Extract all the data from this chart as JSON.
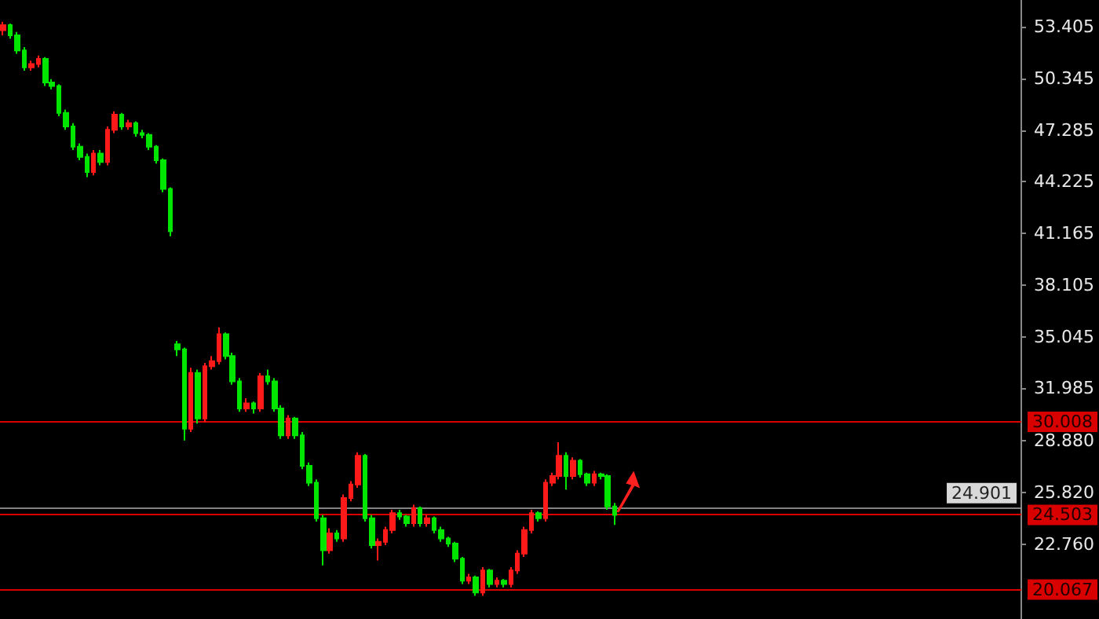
{
  "chart_data": {
    "type": "candlestick",
    "categories": [
      null,
      null,
      null,
      null,
      null,
      null,
      null,
      null,
      null,
      null,
      null,
      null,
      null,
      null,
      null,
      null,
      null,
      null,
      null,
      null,
      null,
      null,
      null,
      null,
      null,
      null,
      null,
      null,
      null,
      null,
      null,
      null,
      null,
      null,
      null,
      null,
      null,
      null,
      null,
      null,
      null,
      null,
      null,
      null,
      null,
      null,
      null,
      null,
      null,
      null,
      null,
      null,
      null,
      null,
      null,
      null,
      null,
      null,
      null,
      null,
      null,
      null,
      null,
      null,
      null,
      null,
      null,
      null,
      null,
      null,
      null,
      null,
      null,
      null,
      null,
      null,
      null,
      null,
      null,
      null,
      null,
      null,
      null,
      null,
      null,
      null,
      null,
      null,
      null,
      null,
      null,
      null,
      null,
      null,
      null,
      null,
      null,
      null,
      null,
      null,
      null,
      null,
      null,
      null,
      null,
      null,
      null,
      null,
      null,
      null,
      null,
      null,
      null,
      null,
      null,
      null,
      null,
      null,
      null,
      null,
      null,
      null,
      null,
      null,
      null,
      null,
      null,
      null,
      null,
      null,
      null,
      null,
      null,
      null,
      null,
      null,
      null,
      null,
      null,
      null,
      null,
      null,
      null,
      null,
      null,
      null,
      null
    ],
    "ohlc": [
      [
        53.2,
        53.7,
        52.9,
        53.5
      ],
      [
        53.5,
        53.6,
        52.7,
        52.9
      ],
      [
        52.9,
        53.1,
        51.8,
        52.0
      ],
      [
        52.0,
        52.2,
        50.8,
        51.0
      ],
      [
        51.0,
        51.4,
        50.8,
        51.2
      ],
      [
        51.2,
        51.7,
        51.0,
        51.5
      ],
      [
        51.5,
        51.6,
        49.9,
        50.1
      ],
      [
        50.1,
        50.3,
        49.7,
        49.9
      ],
      [
        49.9,
        50.0,
        48.1,
        48.3
      ],
      [
        48.3,
        48.5,
        47.3,
        47.5
      ],
      [
        47.5,
        47.7,
        46.1,
        46.3
      ],
      [
        46.3,
        46.5,
        45.5,
        45.7
      ],
      [
        45.7,
        45.9,
        44.5,
        44.8
      ],
      [
        44.8,
        46.1,
        44.6,
        45.9
      ],
      [
        45.9,
        46.1,
        45.2,
        45.4
      ],
      [
        45.4,
        47.5,
        45.2,
        47.3
      ],
      [
        47.3,
        48.4,
        47.1,
        48.2
      ],
      [
        48.2,
        48.3,
        47.3,
        47.5
      ],
      [
        47.5,
        47.9,
        47.3,
        47.7
      ],
      [
        47.7,
        47.8,
        46.9,
        47.1
      ],
      [
        47.1,
        47.3,
        46.8,
        47.0
      ],
      [
        47.0,
        47.1,
        46.1,
        46.3
      ],
      [
        46.3,
        46.4,
        45.3,
        45.5
      ],
      [
        45.5,
        45.6,
        43.6,
        43.8
      ],
      [
        43.8,
        43.9,
        41.0,
        41.3
      ],
      [
        34.6,
        34.8,
        33.9,
        34.3
      ],
      [
        34.3,
        34.4,
        28.9,
        29.6
      ],
      [
        29.6,
        33.2,
        29.4,
        32.9
      ],
      [
        32.9,
        33.1,
        29.9,
        30.2
      ],
      [
        30.2,
        33.5,
        30.0,
        33.3
      ],
      [
        33.3,
        33.9,
        33.1,
        33.6
      ],
      [
        33.6,
        35.6,
        33.4,
        35.2
      ],
      [
        35.2,
        35.3,
        33.7,
        33.9
      ],
      [
        33.9,
        34.1,
        32.2,
        32.4
      ],
      [
        32.4,
        32.6,
        30.6,
        30.8
      ],
      [
        30.8,
        31.4,
        30.6,
        31.1
      ],
      [
        31.1,
        31.2,
        30.5,
        30.8
      ],
      [
        30.8,
        32.9,
        30.6,
        32.7
      ],
      [
        32.7,
        33.1,
        32.2,
        32.4
      ],
      [
        32.4,
        32.6,
        30.6,
        30.8
      ],
      [
        30.8,
        31.0,
        29.0,
        29.2
      ],
      [
        29.2,
        30.4,
        29.0,
        30.2
      ],
      [
        30.2,
        30.3,
        29.0,
        29.2
      ],
      [
        29.2,
        29.4,
        27.2,
        27.4
      ],
      [
        27.4,
        27.6,
        26.2,
        26.4
      ],
      [
        26.4,
        26.6,
        24.1,
        24.3
      ],
      [
        24.3,
        24.5,
        21.5,
        22.4
      ],
      [
        22.4,
        23.7,
        22.2,
        23.4
      ],
      [
        23.4,
        23.6,
        22.9,
        23.1
      ],
      [
        23.1,
        25.7,
        22.9,
        25.5
      ],
      [
        25.5,
        26.5,
        25.3,
        26.3
      ],
      [
        26.3,
        28.2,
        26.1,
        28.0
      ],
      [
        28.0,
        28.1,
        24.1,
        24.3
      ],
      [
        24.3,
        24.5,
        22.5,
        22.7
      ],
      [
        22.7,
        23.1,
        21.8,
        22.9
      ],
      [
        22.9,
        23.8,
        22.7,
        23.6
      ],
      [
        23.6,
        24.8,
        23.4,
        24.6
      ],
      [
        24.6,
        24.8,
        24.2,
        24.4
      ],
      [
        24.4,
        24.5,
        23.8,
        24.0
      ],
      [
        24.0,
        25.1,
        23.8,
        24.9
      ],
      [
        24.9,
        25.0,
        23.8,
        24.0
      ],
      [
        24.0,
        24.5,
        23.8,
        24.3
      ],
      [
        24.3,
        24.4,
        23.4,
        23.6
      ],
      [
        23.6,
        23.8,
        22.9,
        23.1
      ],
      [
        23.1,
        23.2,
        22.6,
        22.8
      ],
      [
        22.8,
        22.9,
        21.7,
        21.9
      ],
      [
        21.9,
        22.0,
        20.4,
        20.6
      ],
      [
        20.6,
        21.0,
        20.4,
        20.8
      ],
      [
        20.8,
        20.9,
        19.7,
        19.9
      ],
      [
        19.9,
        21.4,
        19.7,
        21.2
      ],
      [
        21.2,
        21.3,
        20.2,
        20.4
      ],
      [
        20.4,
        20.8,
        20.2,
        20.6
      ],
      [
        20.6,
        20.7,
        20.2,
        20.4
      ],
      [
        20.4,
        21.4,
        20.2,
        21.2
      ],
      [
        21.2,
        22.4,
        21.0,
        22.2
      ],
      [
        22.2,
        23.8,
        22.0,
        23.6
      ],
      [
        23.6,
        24.8,
        23.4,
        24.6
      ],
      [
        24.6,
        24.7,
        24.1,
        24.3
      ],
      [
        24.3,
        26.6,
        24.1,
        26.4
      ],
      [
        26.4,
        27.0,
        26.2,
        26.8
      ],
      [
        26.8,
        28.8,
        26.6,
        28.0
      ],
      [
        28.0,
        28.2,
        26.0,
        26.8
      ],
      [
        26.8,
        27.9,
        26.6,
        27.7
      ],
      [
        27.7,
        27.8,
        26.7,
        26.9
      ],
      [
        26.9,
        27.0,
        26.2,
        26.4
      ],
      [
        26.4,
        27.1,
        26.2,
        26.9
      ],
      [
        26.9,
        27.0,
        26.6,
        26.8
      ],
      [
        26.8,
        26.9,
        24.8,
        25.0
      ],
      [
        25.0,
        25.2,
        23.9,
        24.5
      ],
      null,
      null,
      null,
      null,
      null,
      null,
      null,
      null,
      null,
      null,
      null,
      null,
      null,
      null,
      null,
      null,
      null,
      null,
      null,
      null,
      null,
      null,
      null,
      null,
      null,
      null,
      null,
      null,
      null,
      null,
      null,
      null,
      null,
      null,
      null,
      null,
      null,
      null,
      null,
      null,
      null,
      null,
      null,
      null,
      null,
      null,
      null,
      null,
      null,
      null,
      null,
      null,
      null,
      null,
      null,
      null,
      null,
      null
    ],
    "ylim": [
      18.33,
      54.99
    ],
    "yticks": [
      {
        "value": 22.76,
        "label": "22.760"
      },
      {
        "value": 25.82,
        "label": "25.820"
      },
      {
        "value": 28.88,
        "label": "28.880"
      },
      {
        "value": 31.985,
        "label": "31.985"
      },
      {
        "value": 35.045,
        "label": "35.045"
      },
      {
        "value": 38.105,
        "label": "38.105"
      },
      {
        "value": 41.165,
        "label": "41.165"
      },
      {
        "value": 44.225,
        "label": "44.225"
      },
      {
        "value": 47.285,
        "label": "47.285"
      },
      {
        "value": 50.345,
        "label": "50.345"
      },
      {
        "value": 53.405,
        "label": "53.405"
      }
    ],
    "ref_lines": [
      {
        "axis": "y",
        "value": 30.008,
        "label": "30.008",
        "color": "#ff0000"
      },
      {
        "axis": "y",
        "value": 24.901,
        "label": "24.901",
        "color": "#9a9a9a"
      },
      {
        "axis": "y",
        "value": 24.503,
        "label": "24.503",
        "color": "#ff0000"
      },
      {
        "axis": "y",
        "value": 20.067,
        "label": "20.067",
        "color": "#ff0000"
      }
    ],
    "tick_labels": "y"
  }
}
